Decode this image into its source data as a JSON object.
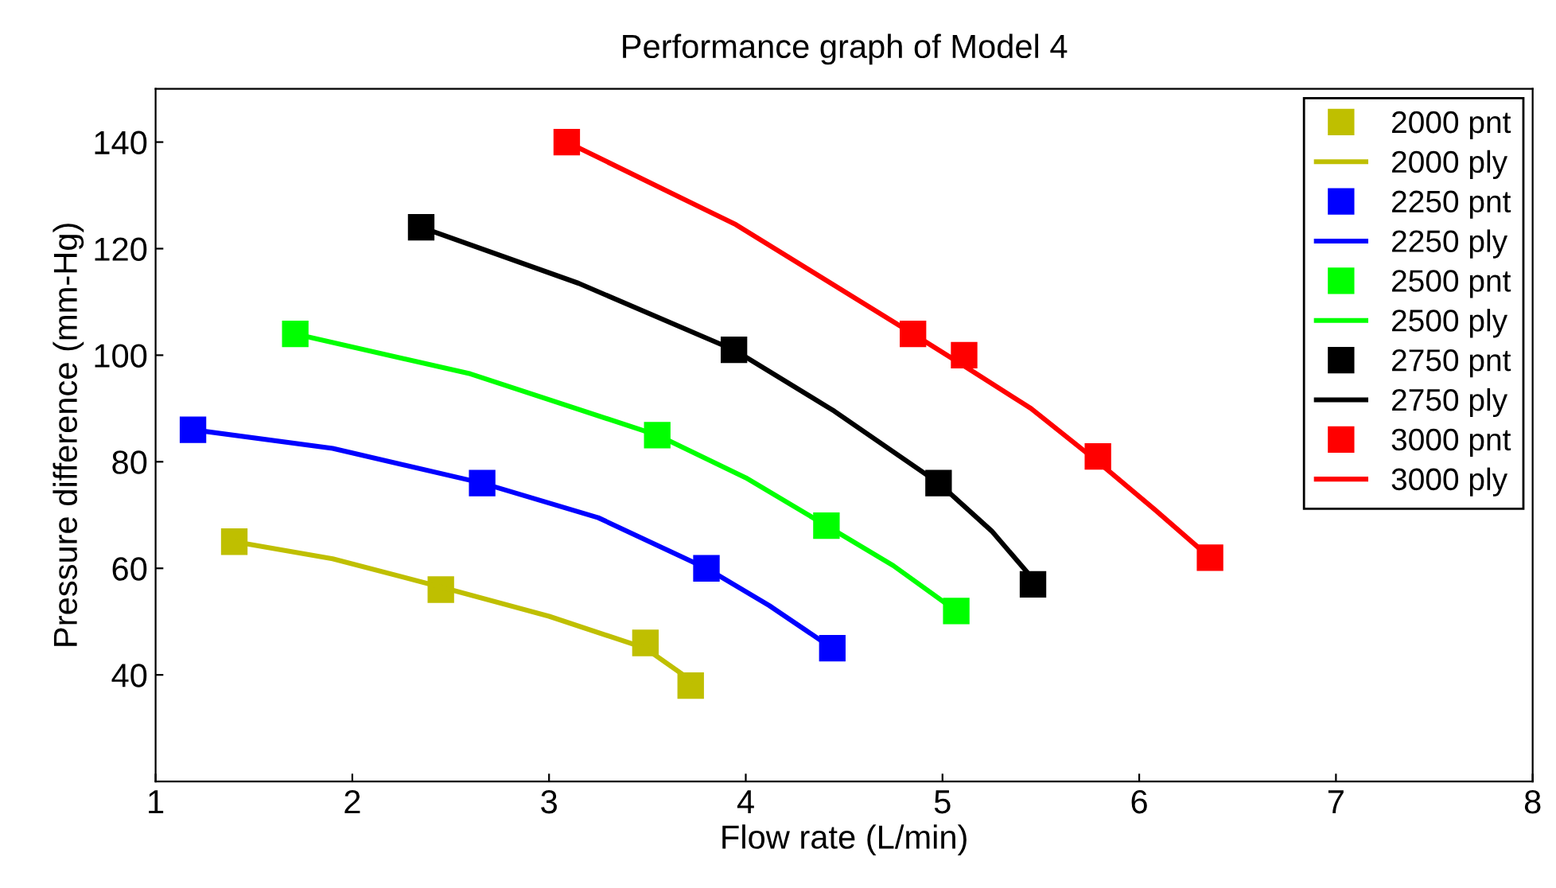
{
  "chart_data": {
    "type": "scatter",
    "title": "Performance graph of Model 4",
    "xlabel": "Flow rate (L/min)",
    "ylabel": "Pressure difference (mm-Hg)",
    "xlim": [
      1,
      8
    ],
    "ylim": [
      20,
      150
    ],
    "xticks": [
      1,
      2,
      3,
      4,
      5,
      6,
      7,
      8
    ],
    "yticks": [
      40,
      60,
      80,
      100,
      120,
      140
    ],
    "grid": false,
    "legend": "top right",
    "marker": "square",
    "series": [
      {
        "name": "2000 pnt",
        "color": "#bfbf00",
        "x": [
          1.4,
          2.45,
          3.49,
          3.72
        ],
        "values": [
          65,
          56,
          46,
          38
        ]
      },
      {
        "name": "2000 ply",
        "type": "line",
        "marker": "none",
        "color": "#bfbf00",
        "x": [
          1.4,
          1.9,
          2.45,
          3.0,
          3.49,
          3.72
        ],
        "values": [
          65,
          61.8,
          56.5,
          51,
          45,
          39
        ]
      },
      {
        "name": "2250 pnt",
        "color": "#0000ff",
        "x": [
          1.19,
          2.66,
          3.8,
          4.44
        ],
        "values": [
          86,
          76,
          60,
          45
        ]
      },
      {
        "name": "2250 ply",
        "type": "line",
        "marker": "none",
        "color": "#0000ff",
        "x": [
          1.19,
          1.9,
          2.66,
          3.25,
          3.8,
          4.12,
          4.44
        ],
        "values": [
          86,
          82.5,
          76,
          69.5,
          60,
          53,
          45
        ]
      },
      {
        "name": "2500 pnt",
        "color": "#00ff00",
        "x": [
          1.71,
          3.55,
          4.41,
          5.07
        ],
        "values": [
          104,
          85,
          68,
          52
        ]
      },
      {
        "name": "2500 ply",
        "type": "line",
        "marker": "none",
        "color": "#00ff00",
        "x": [
          1.71,
          2.6,
          3.55,
          4.0,
          4.41,
          4.75,
          5.07
        ],
        "values": [
          104,
          96.5,
          85,
          77,
          68,
          60.5,
          52
        ]
      },
      {
        "name": "2750 pnt",
        "color": "#000000",
        "x": [
          2.35,
          3.94,
          4.98,
          5.46
        ],
        "values": [
          124,
          101,
          76,
          57
        ]
      },
      {
        "name": "2750 ply",
        "type": "line",
        "marker": "none",
        "color": "#000000",
        "x": [
          2.35,
          3.15,
          3.94,
          4.45,
          4.98,
          5.25,
          5.46
        ],
        "values": [
          124,
          113.5,
          101,
          89.5,
          76,
          67,
          58
        ]
      },
      {
        "name": "3000 pnt",
        "color": "#ff0000",
        "x": [
          3.09,
          4.85,
          5.11,
          5.79,
          6.36
        ],
        "values": [
          140,
          104,
          100,
          81,
          62
        ]
      },
      {
        "name": "3000 ply",
        "type": "line",
        "marker": "none",
        "color": "#ff0000",
        "x": [
          3.09,
          3.95,
          4.85,
          5.11,
          5.45,
          5.79,
          6.08,
          6.36
        ],
        "values": [
          140,
          124.5,
          104,
          98,
          90,
          80,
          71,
          62
        ]
      }
    ]
  }
}
